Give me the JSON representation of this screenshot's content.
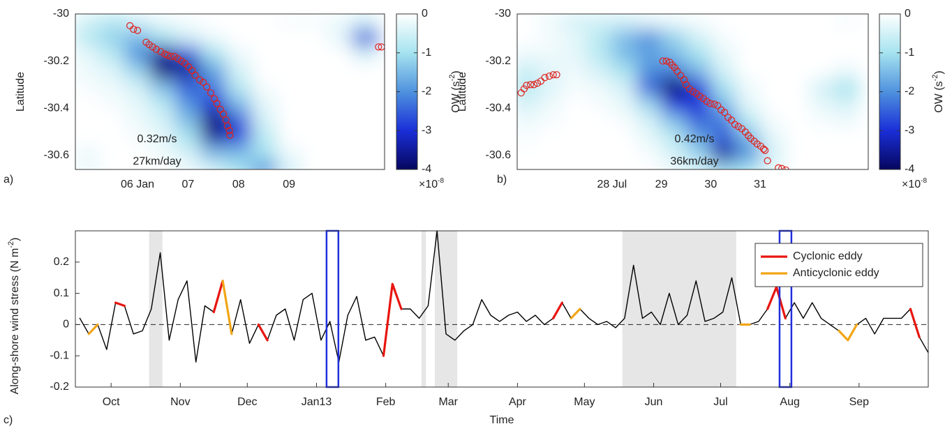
{
  "chart_data": [
    {
      "type": "heatmap",
      "panel_label": "a)",
      "ylabel": "Latitude",
      "xlim": [
        4.77,
        10.89
      ],
      "xticks": [
        {
          "value": 6,
          "label": "06 Jan"
        },
        {
          "value": 7,
          "label": "07"
        },
        {
          "value": 8,
          "label": "08"
        },
        {
          "value": 9,
          "label": "09"
        }
      ],
      "ylim": [
        -30.66,
        -30
      ],
      "yticks": [
        -30.6,
        -30.4,
        -30.2,
        -30
      ],
      "clim": [
        -4,
        0
      ],
      "cticks": [
        -4,
        -3,
        -2,
        -1,
        0
      ],
      "colormap": [
        "#06065e",
        "#1a2fd8",
        "#4f92de",
        "#a6e3ef",
        "#ffffff"
      ],
      "colorbar_label": "OW (s",
      "colorbar_label_exponent": "-2",
      "colorbar_label_end": ")",
      "colorbar_multiplier": "×10",
      "colorbar_multiplier_exponent": "-8",
      "annotations": [
        "0.32m/s",
        "27km/day"
      ],
      "heatmap": {
        "x": [
          5.0,
          5.5,
          6.0,
          6.5,
          7.0,
          7.5,
          8.0,
          8.5,
          9.0,
          9.5,
          10.0,
          10.5
        ],
        "y": [
          -30.03,
          -30.1,
          -30.17,
          -30.24,
          -30.31,
          -30.38,
          -30.45,
          -30.52,
          -30.59,
          -30.66
        ],
        "z": [
          [
            -0.5,
            -0.8,
            -0.5,
            -0.2,
            -0.1,
            0,
            0,
            0,
            -0.1,
            -0.1,
            -0.2,
            -0.5
          ],
          [
            -0.8,
            -1.2,
            -1.5,
            -1,
            -0.5,
            -0.2,
            0,
            0,
            0,
            0,
            -0.3,
            -2.5
          ],
          [
            -0.3,
            -0.8,
            -2,
            -3.5,
            -2.5,
            -1,
            -0.2,
            0,
            0,
            0,
            0,
            -0.5
          ],
          [
            -0.2,
            -0.4,
            -1.2,
            -3.8,
            -3.5,
            -1.8,
            -0.5,
            0,
            0,
            0,
            0,
            0
          ],
          [
            -0.1,
            -0.2,
            -0.5,
            -1.5,
            -2.5,
            -2.2,
            -0.8,
            -0.1,
            0,
            0,
            0,
            0
          ],
          [
            0,
            -0.1,
            -0.3,
            -0.8,
            -2,
            -3,
            -1.5,
            -0.3,
            0,
            0,
            0,
            0
          ],
          [
            0,
            0,
            -0.2,
            -0.5,
            -1.5,
            -3.8,
            -2.5,
            -0.5,
            0,
            0,
            0,
            0
          ],
          [
            0,
            0,
            -0.1,
            -0.3,
            -1,
            -3.5,
            -2.8,
            -0.8,
            0,
            0,
            0,
            0
          ],
          [
            -0.2,
            0,
            0,
            -0.2,
            -0.5,
            -1.5,
            -1.5,
            -1,
            -0.2,
            0,
            0,
            0
          ],
          [
            -0.2,
            0,
            0,
            0,
            -0.2,
            -0.5,
            -1,
            -2,
            -0.5,
            0,
            0,
            0
          ]
        ]
      },
      "scatter": {
        "color": "#e0201b",
        "x": [
          5.85,
          5.92,
          6.0,
          6.17,
          6.23,
          6.3,
          6.37,
          6.46,
          6.54,
          6.59,
          6.66,
          6.73,
          6.8,
          6.87,
          6.94,
          7.01,
          7.08,
          7.14,
          7.23,
          7.3,
          7.37,
          7.45,
          7.52,
          7.57,
          7.64,
          7.7,
          7.75,
          7.78,
          7.82,
          7.83,
          10.77,
          10.83
        ],
        "y": [
          -30.05,
          -30.065,
          -30.07,
          -30.12,
          -30.13,
          -30.14,
          -30.15,
          -30.16,
          -30.17,
          -30.175,
          -30.18,
          -30.18,
          -30.19,
          -30.2,
          -30.21,
          -30.225,
          -30.24,
          -30.26,
          -30.28,
          -30.29,
          -30.31,
          -30.335,
          -30.36,
          -30.38,
          -30.405,
          -30.425,
          -30.45,
          -30.475,
          -30.495,
          -30.515,
          -30.14,
          -30.14
        ]
      }
    },
    {
      "type": "heatmap",
      "panel_label": "b)",
      "ylabel": "Latitude",
      "xlim": [
        26.08,
        33.19
      ],
      "xticks": [
        {
          "value": 28,
          "label": "28 Jul"
        },
        29,
        30,
        31
      ],
      "ylim": [
        -30.66,
        -30
      ],
      "yticks": [
        -30.6,
        -30.4,
        -30.2,
        -30
      ],
      "clim": [
        -4,
        0
      ],
      "cticks": [
        -4,
        -3,
        -2,
        -1,
        0
      ],
      "colormap": [
        "#06065e",
        "#1a2fd8",
        "#4f92de",
        "#a6e3ef",
        "#ffffff"
      ],
      "colorbar_label": "OW (s",
      "colorbar_label_exponent": "-2",
      "colorbar_label_end": ")",
      "colorbar_multiplier": "×10",
      "colorbar_multiplier_exponent": "-8",
      "annotations": [
        "0.42m/s",
        "36km/day"
      ],
      "heatmap": {
        "x": [
          26.25,
          26.75,
          27.25,
          27.75,
          28.25,
          28.75,
          29.25,
          29.75,
          30.25,
          30.75,
          31.25,
          31.75,
          32.25,
          32.75
        ],
        "y": [
          -30.03,
          -30.1,
          -30.17,
          -30.24,
          -30.31,
          -30.38,
          -30.45,
          -30.52,
          -30.59,
          -30.66
        ],
        "z": [
          [
            0,
            -0.2,
            -0.5,
            -0.5,
            -0.5,
            -0.3,
            -0.2,
            -0.1,
            0,
            0,
            0,
            0,
            0,
            -0.1
          ],
          [
            0,
            -0.1,
            -0.3,
            -0.8,
            -1.5,
            -2,
            -1.2,
            -0.5,
            -0.1,
            0,
            0,
            0,
            0,
            0
          ],
          [
            -0.2,
            -0.2,
            -0.3,
            -0.8,
            -1.5,
            -1.8,
            -1.5,
            -1,
            -0.3,
            0,
            0,
            0,
            0,
            0
          ],
          [
            -0.6,
            -0.3,
            -0.2,
            -0.5,
            -1,
            -2,
            -2.2,
            -1.5,
            -0.5,
            0,
            0,
            0,
            0,
            -0.2
          ],
          [
            -0.8,
            -0.4,
            -0.1,
            -0.2,
            -0.5,
            -2.5,
            -4,
            -2.8,
            -1,
            -0.2,
            0,
            0,
            -0.5,
            -1
          ],
          [
            -0.5,
            -0.2,
            0,
            -0.1,
            -0.3,
            -1.2,
            -3,
            -3,
            -1.5,
            -0.3,
            0,
            0,
            -0.3,
            -0.5
          ],
          [
            -0.2,
            -0.1,
            0,
            0,
            -0.1,
            -0.5,
            -1.5,
            -2.5,
            -2.2,
            -0.8,
            -0.1,
            0,
            -0.1,
            -0.2
          ],
          [
            -0.1,
            0,
            0,
            0,
            0,
            -0.3,
            -0.8,
            -1.8,
            -2.5,
            -1.5,
            -0.3,
            0,
            0,
            0
          ],
          [
            0,
            0,
            0,
            0,
            0,
            -0.1,
            -0.5,
            -1.2,
            -3.5,
            -2,
            -0.5,
            0,
            0,
            0
          ],
          [
            0,
            0,
            0,
            0,
            0,
            0,
            -0.2,
            -0.5,
            -1.2,
            -1,
            -0.3,
            0,
            0,
            0
          ]
        ]
      },
      "scatter": {
        "color": "#e0201b",
        "x": [
          26.16,
          26.22,
          26.27,
          26.35,
          26.42,
          26.49,
          26.56,
          26.64,
          26.73,
          26.81,
          26.88,
          29.03,
          29.1,
          29.17,
          29.22,
          29.27,
          29.32,
          29.39,
          29.46,
          29.5,
          29.57,
          29.64,
          29.71,
          29.78,
          29.85,
          29.92,
          29.99,
          30.07,
          30.14,
          30.21,
          30.28,
          30.35,
          30.42,
          30.49,
          30.56,
          30.63,
          30.7,
          30.76,
          30.81,
          30.88,
          30.94,
          31.01,
          31.07,
          31.1,
          31.15,
          31.37,
          31.44,
          31.52
        ],
        "y": [
          -30.335,
          -30.318,
          -30.303,
          -30.3,
          -30.3,
          -30.294,
          -30.285,
          -30.27,
          -30.264,
          -30.258,
          -30.258,
          -30.2,
          -30.2,
          -30.205,
          -30.217,
          -30.228,
          -30.243,
          -30.261,
          -30.279,
          -30.3,
          -30.318,
          -30.329,
          -30.338,
          -30.35,
          -30.359,
          -30.371,
          -30.38,
          -30.383,
          -30.389,
          -30.407,
          -30.418,
          -30.439,
          -30.451,
          -30.469,
          -30.478,
          -30.487,
          -30.501,
          -30.516,
          -30.528,
          -30.54,
          -30.552,
          -30.561,
          -30.573,
          -30.579,
          -30.623,
          -30.653,
          -30.656,
          -30.662
        ]
      }
    },
    {
      "type": "line",
      "panel_label": "c)",
      "xlabel": "Time",
      "ylabel": "Along-shore wind stress (N m",
      "ylabel_exponent": "-2",
      "ylabel_end": ")",
      "xlim": [
        -16,
        366
      ],
      "xticks": [
        {
          "value": 0,
          "label": "Oct"
        },
        {
          "value": 31,
          "label": "Nov"
        },
        {
          "value": 61,
          "label": "Dec"
        },
        {
          "value": 92,
          "label": "Jan13"
        },
        {
          "value": 123,
          "label": "Feb"
        },
        {
          "value": 151,
          "label": "Mar"
        },
        {
          "value": 182,
          "label": "Apr"
        },
        {
          "value": 212,
          "label": "May"
        },
        {
          "value": 243,
          "label": "Jun"
        },
        {
          "value": 273,
          "label": "Jul"
        },
        {
          "value": 304,
          "label": "Aug"
        },
        {
          "value": 335,
          "label": "Sep"
        }
      ],
      "ylim": [
        -0.2,
        0.3
      ],
      "yticks": [
        -0.2,
        -0.1,
        0,
        0.1,
        0.2
      ],
      "x": [
        -14,
        -10,
        -6,
        -2,
        2,
        6,
        10,
        14,
        18,
        22,
        26,
        30,
        34,
        38,
        42,
        46,
        50,
        54,
        58,
        62,
        66,
        70,
        74,
        78,
        82,
        86,
        90,
        94,
        98,
        102,
        106,
        110,
        114,
        118,
        122,
        126,
        130,
        134,
        138,
        142,
        146,
        150,
        154,
        158,
        162,
        166,
        170,
        174,
        178,
        182,
        186,
        190,
        194,
        198,
        202,
        206,
        210,
        214,
        218,
        222,
        226,
        230,
        234,
        238,
        242,
        246,
        250,
        254,
        258,
        262,
        266,
        270,
        274,
        278,
        282,
        286,
        290,
        294,
        298,
        302,
        306,
        310,
        314,
        318,
        322,
        326,
        330,
        334,
        338,
        342,
        346,
        350,
        354,
        358,
        362,
        366
      ],
      "series": [
        {
          "color": "#000000",
          "values": [
            0.02,
            -0.03,
            0.0,
            -0.08,
            0.07,
            0.06,
            -0.03,
            -0.02,
            0.05,
            0.23,
            -0.05,
            0.08,
            0.14,
            -0.12,
            0.06,
            0.04,
            0.14,
            -0.03,
            0.08,
            -0.06,
            0.0,
            -0.05,
            0.03,
            0.05,
            -0.05,
            0.08,
            0.1,
            -0.05,
            0.01,
            -0.12,
            0.03,
            0.09,
            -0.05,
            -0.04,
            -0.1,
            0.13,
            0.05,
            0.05,
            0.02,
            0.06,
            0.3,
            -0.03,
            -0.05,
            -0.02,
            0.0,
            0.08,
            0.03,
            0.01,
            0.03,
            0.04,
            0.01,
            0.03,
            0.0,
            0.02,
            0.07,
            0.02,
            0.05,
            0.02,
            0.0,
            0.01,
            -0.01,
            0.02,
            0.19,
            0.02,
            0.04,
            0.0,
            0.1,
            0.0,
            0.03,
            0.14,
            0.01,
            0.02,
            0.04,
            0.15,
            0.0,
            0.0,
            0.01,
            0.05,
            0.12,
            0.02,
            0.07,
            0.02,
            0.07,
            0.02,
            0.0,
            -0.02,
            -0.05,
            0.0,
            0.02,
            -0.03,
            0.02,
            0.02,
            0.02,
            0.05,
            -0.04,
            -0.09
          ]
        },
        {
          "name": "Cyclonic eddy",
          "color": "#e8150f",
          "values": [
            null,
            null,
            null,
            null,
            0.07,
            0.06,
            null,
            null,
            null,
            null,
            null,
            null,
            null,
            null,
            null,
            0.04,
            0.14,
            null,
            null,
            null,
            0.0,
            -0.05,
            null,
            null,
            null,
            null,
            null,
            null,
            null,
            null,
            null,
            null,
            null,
            null,
            -0.1,
            0.13,
            0.05,
            null,
            null,
            null,
            null,
            null,
            null,
            null,
            null,
            null,
            null,
            null,
            null,
            null,
            null,
            null,
            null,
            0.02,
            0.07,
            null,
            null,
            null,
            null,
            null,
            null,
            null,
            null,
            null,
            null,
            null,
            null,
            null,
            null,
            null,
            null,
            null,
            null,
            null,
            null,
            null,
            null,
            0.05,
            0.12,
            0.02,
            null,
            null,
            null,
            null,
            null,
            null,
            null,
            null,
            null,
            null,
            null,
            null,
            null,
            0.05,
            -0.04,
            null
          ]
        },
        {
          "name": "Anticyclonic eddy",
          "color": "#f2a516",
          "values": [
            null,
            -0.03,
            0.0,
            null,
            null,
            null,
            null,
            null,
            null,
            null,
            null,
            null,
            null,
            null,
            null,
            null,
            0.14,
            -0.03,
            null,
            null,
            null,
            null,
            null,
            null,
            null,
            null,
            null,
            null,
            null,
            null,
            null,
            null,
            null,
            null,
            null,
            null,
            null,
            null,
            null,
            null,
            null,
            null,
            null,
            null,
            null,
            null,
            null,
            null,
            null,
            null,
            null,
            null,
            null,
            null,
            null,
            0.02,
            0.05,
            null,
            null,
            null,
            null,
            null,
            null,
            null,
            null,
            null,
            null,
            null,
            null,
            null,
            null,
            null,
            null,
            null,
            0.0,
            0.0,
            null,
            null,
            null,
            null,
            null,
            null,
            null,
            null,
            null,
            -0.02,
            -0.05,
            0.0,
            null,
            null,
            null,
            null,
            null,
            null,
            null,
            null
          ]
        }
      ],
      "shaded": [
        [
          17,
          23
        ],
        [
          139,
          141
        ],
        [
          145,
          155
        ],
        [
          229,
          280
        ]
      ],
      "shade_color": "#e6e6e6",
      "highlights": [
        [
          96.5,
          101.8
        ],
        [
          299.4,
          304.7
        ]
      ],
      "highlight_color": "#1f2fdc",
      "legend": "upper right"
    }
  ]
}
